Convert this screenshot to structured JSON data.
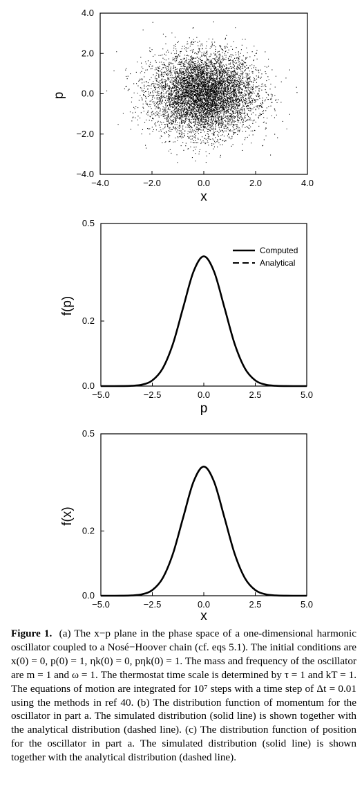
{
  "chart_data": [
    {
      "type": "scatter",
      "xlabel": "x",
      "ylabel": "p",
      "xlim": [
        -4.0,
        4.0
      ],
      "ylim": [
        -4.0,
        4.0
      ],
      "xticks": [
        "−4.0",
        "−2.0",
        "0.0",
        "2.0",
        "4.0"
      ],
      "yticks": [
        "−4.0",
        "−2.0",
        "0.0",
        "2.0",
        "4.0"
      ],
      "distribution": {
        "mean_x": 0.0,
        "mean_p": 0.0,
        "std_x": 1.0,
        "std_p": 1.0
      }
    },
    {
      "type": "line",
      "xlabel": "p",
      "ylabel": "f(p)",
      "xlim": [
        -5.0,
        5.0
      ],
      "ylim": [
        0.0,
        0.5
      ],
      "xticks": [
        "−5.0",
        "−2.5",
        "0.0",
        "2.5",
        "5.0"
      ],
      "yticks": [
        "0.0",
        "0.2",
        "0.5"
      ],
      "legend_position": "top-right",
      "x": [
        -5.0,
        -4.5,
        -4.0,
        -3.5,
        -3.0,
        -2.5,
        -2.0,
        -1.5,
        -1.0,
        -0.5,
        0.0,
        0.5,
        1.0,
        1.5,
        2.0,
        2.5,
        3.0,
        3.5,
        4.0,
        4.5,
        5.0
      ],
      "series": [
        {
          "name": "Computed",
          "values": [
            0.0,
            0.0,
            0.0001,
            0.0009,
            0.0044,
            0.0175,
            0.054,
            0.1295,
            0.242,
            0.352,
            0.399,
            0.352,
            0.242,
            0.1295,
            0.054,
            0.0175,
            0.0044,
            0.0009,
            0.0001,
            0.0,
            0.0
          ]
        },
        {
          "name": "Analytical",
          "values": [
            0.0,
            0.0,
            0.0001,
            0.0009,
            0.0044,
            0.0175,
            0.054,
            0.1295,
            0.242,
            0.352,
            0.399,
            0.352,
            0.242,
            0.1295,
            0.054,
            0.0175,
            0.0044,
            0.0009,
            0.0001,
            0.0,
            0.0
          ]
        }
      ]
    },
    {
      "type": "line",
      "xlabel": "x",
      "ylabel": "f(x)",
      "xlim": [
        -5.0,
        5.0
      ],
      "ylim": [
        0.0,
        0.5
      ],
      "xticks": [
        "−5.0",
        "−2.5",
        "0.0",
        "2.5",
        "5.0"
      ],
      "yticks": [
        "0.0",
        "0.2",
        "0.5"
      ],
      "x": [
        -5.0,
        -4.5,
        -4.0,
        -3.5,
        -3.0,
        -2.5,
        -2.0,
        -1.5,
        -1.0,
        -0.5,
        0.0,
        0.5,
        1.0,
        1.5,
        2.0,
        2.5,
        3.0,
        3.5,
        4.0,
        4.5,
        5.0
      ],
      "series": [
        {
          "name": "",
          "values": [
            0.0,
            0.0,
            0.0001,
            0.0009,
            0.0044,
            0.0175,
            0.054,
            0.1295,
            0.242,
            0.352,
            0.399,
            0.352,
            0.242,
            0.1295,
            0.054,
            0.0175,
            0.0044,
            0.0009,
            0.0001,
            0.0,
            0.0
          ]
        },
        {
          "name": "",
          "values": [
            0.0,
            0.0,
            0.0001,
            0.0009,
            0.0044,
            0.0175,
            0.054,
            0.1295,
            0.242,
            0.352,
            0.399,
            0.352,
            0.242,
            0.1295,
            0.054,
            0.0175,
            0.0044,
            0.0009,
            0.0001,
            0.0,
            0.0
          ]
        }
      ]
    }
  ],
  "caption": {
    "label": "Figure 1.",
    "text": "(a) The x−p plane in the phase space of a one-dimensional harmonic oscillator coupled to a Nosé−Hoover chain (cf. eqs 5.1). The initial conditions are x(0) = 0, p(0) = 1, ηk(0) = 0, pηk(0) = 1. The mass and frequency of the oscillator are m = 1 and ω = 1. The thermostat time scale is determined by τ = 1 and kT = 1. The equations of motion are integrated for 10⁷ steps with a time step of Δt = 0.01 using the methods in ref 40. (b) The distribution function of momentum for the oscillator in part a. The simulated distribution (solid line) is shown together with the analytical distribution (dashed line). (c) The distribution function of position for the oscillator in part a. The simulated distribution (solid line) is shown together with the analytical distribution (dashed line)."
  }
}
